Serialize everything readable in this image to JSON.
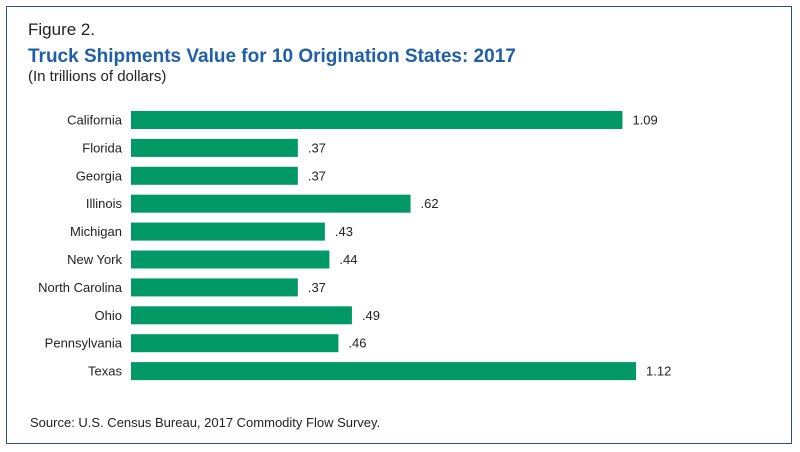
{
  "figure": {
    "label": "Figure 2.",
    "title": "Truck Shipments Value for 10 Origination States: 2017",
    "subtitle": "(In trillions of dollars)",
    "source": "Source: U.S. Census Bureau, 2017 Commodity Flow Survey."
  },
  "colors": {
    "bar": "#009966",
    "title": "#1f5fa8",
    "border": "#2b4f8c"
  },
  "chart_data": {
    "type": "bar",
    "orientation": "horizontal",
    "title": "Truck Shipments Value for 10 Origination States: 2017",
    "subtitle": "(In trillions of dollars)",
    "xlabel": "",
    "ylabel": "",
    "grid": false,
    "categories": [
      "California",
      "Florida",
      "Georgia",
      "Illinois",
      "Michigan",
      "New York",
      "North Carolina",
      "Ohio",
      "Pennsylvania",
      "Texas"
    ],
    "values": [
      1.09,
      0.37,
      0.37,
      0.62,
      0.43,
      0.44,
      0.37,
      0.49,
      0.46,
      1.12
    ],
    "data_labels": [
      "1.09",
      ".37",
      ".37",
      ".62",
      ".43",
      ".44",
      ".37",
      ".49",
      ".46",
      "1.12"
    ],
    "xlim": [
      0,
      1.12
    ]
  }
}
